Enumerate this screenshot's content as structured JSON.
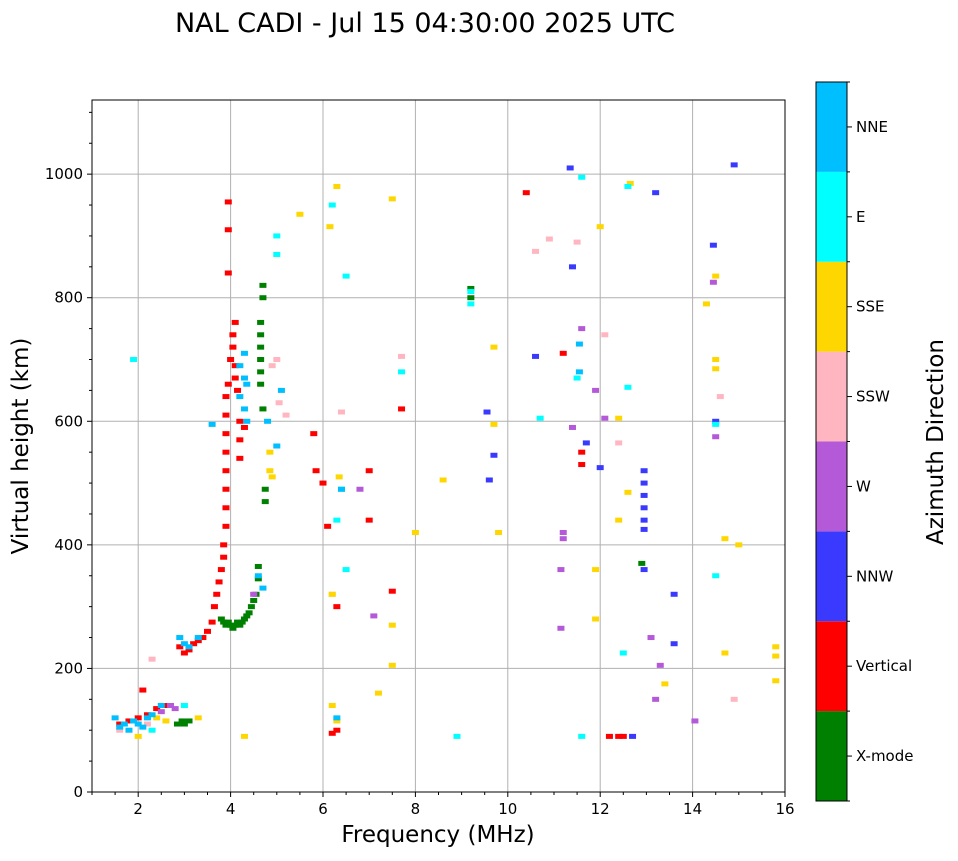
{
  "chart_data": {
    "type": "scatter",
    "title": "NAL CADI - Jul 15 04:30:00 2025 UTC",
    "xlabel": "Frequency (MHz)",
    "ylabel": "Virtual height (km)",
    "xlim": [
      1,
      16
    ],
    "ylim": [
      0,
      1120
    ],
    "xticks": [
      2,
      4,
      6,
      8,
      10,
      12,
      14,
      16
    ],
    "yticks": [
      0,
      200,
      400,
      600,
      800,
      1000
    ],
    "grid": true,
    "colorbar": {
      "label": "Azimuth Direction",
      "categories": [
        {
          "name": "X-mode",
          "color": "#008000"
        },
        {
          "name": "Vertical",
          "color": "#ff0000"
        },
        {
          "name": "NNW",
          "color": "#3a3aff"
        },
        {
          "name": "W",
          "color": "#b45ad8"
        },
        {
          "name": "SSW",
          "color": "#ffb6c1"
        },
        {
          "name": "SSE",
          "color": "#ffd700"
        },
        {
          "name": "E",
          "color": "#00ffff"
        },
        {
          "name": "NNE",
          "color": "#00bfff"
        }
      ]
    },
    "series": [
      {
        "name": "X-mode",
        "points": [
          [
            2.85,
            110
          ],
          [
            2.95,
            115
          ],
          [
            3.0,
            110
          ],
          [
            3.1,
            115
          ],
          [
            3.8,
            280
          ],
          [
            3.85,
            275
          ],
          [
            3.9,
            270
          ],
          [
            3.95,
            275
          ],
          [
            4.0,
            270
          ],
          [
            4.05,
            265
          ],
          [
            4.1,
            270
          ],
          [
            4.15,
            275
          ],
          [
            4.2,
            270
          ],
          [
            4.25,
            275
          ],
          [
            4.3,
            280
          ],
          [
            4.35,
            285
          ],
          [
            4.4,
            290
          ],
          [
            4.45,
            300
          ],
          [
            4.5,
            310
          ],
          [
            4.55,
            320
          ],
          [
            4.6,
            345
          ],
          [
            4.6,
            365
          ],
          [
            4.7,
            620
          ],
          [
            4.65,
            660
          ],
          [
            4.65,
            680
          ],
          [
            4.65,
            700
          ],
          [
            4.65,
            720
          ],
          [
            4.65,
            740
          ],
          [
            4.65,
            760
          ],
          [
            4.7,
            800
          ],
          [
            4.7,
            820
          ],
          [
            4.75,
            490
          ],
          [
            4.75,
            470
          ],
          [
            9.2,
            815
          ],
          [
            9.2,
            800
          ],
          [
            12.9,
            370
          ]
        ]
      },
      {
        "name": "Vertical",
        "points": [
          [
            1.6,
            110
          ],
          [
            1.8,
            115
          ],
          [
            2.0,
            120
          ],
          [
            2.1,
            165
          ],
          [
            2.2,
            125
          ],
          [
            2.4,
            135
          ],
          [
            2.6,
            140
          ],
          [
            2.9,
            235
          ],
          [
            3.0,
            225
          ],
          [
            3.1,
            230
          ],
          [
            3.2,
            240
          ],
          [
            3.3,
            245
          ],
          [
            3.4,
            250
          ],
          [
            3.5,
            260
          ],
          [
            3.6,
            275
          ],
          [
            3.65,
            300
          ],
          [
            3.7,
            320
          ],
          [
            3.75,
            340
          ],
          [
            3.8,
            360
          ],
          [
            3.85,
            380
          ],
          [
            3.85,
            400
          ],
          [
            3.9,
            430
          ],
          [
            3.9,
            460
          ],
          [
            3.9,
            490
          ],
          [
            3.9,
            520
          ],
          [
            3.9,
            550
          ],
          [
            3.9,
            580
          ],
          [
            3.9,
            610
          ],
          [
            3.9,
            640
          ],
          [
            3.95,
            660
          ],
          [
            4.0,
            700
          ],
          [
            4.05,
            740
          ],
          [
            4.1,
            760
          ],
          [
            4.05,
            720
          ],
          [
            4.1,
            690
          ],
          [
            4.1,
            670
          ],
          [
            4.15,
            650
          ],
          [
            4.2,
            600
          ],
          [
            4.2,
            570
          ],
          [
            4.2,
            540
          ],
          [
            4.3,
            590
          ],
          [
            3.95,
            910
          ],
          [
            3.95,
            955
          ],
          [
            3.95,
            840
          ],
          [
            5.8,
            580
          ],
          [
            5.85,
            520
          ],
          [
            6.0,
            500
          ],
          [
            6.1,
            430
          ],
          [
            6.3,
            300
          ],
          [
            6.3,
            100
          ],
          [
            6.2,
            95
          ],
          [
            7.0,
            520
          ],
          [
            7.0,
            440
          ],
          [
            7.5,
            325
          ],
          [
            7.7,
            620
          ],
          [
            10.4,
            970
          ],
          [
            11.2,
            710
          ],
          [
            11.6,
            550
          ],
          [
            11.6,
            530
          ],
          [
            12.2,
            90
          ],
          [
            12.4,
            90
          ],
          [
            12.5,
            90
          ]
        ]
      },
      {
        "name": "NNW",
        "points": [
          [
            9.55,
            615
          ],
          [
            9.6,
            505
          ],
          [
            9.7,
            545
          ],
          [
            10.6,
            705
          ],
          [
            11.35,
            1010
          ],
          [
            11.4,
            850
          ],
          [
            11.7,
            565
          ],
          [
            12.0,
            525
          ],
          [
            12.7,
            90
          ],
          [
            12.95,
            520
          ],
          [
            12.95,
            500
          ],
          [
            12.95,
            480
          ],
          [
            12.95,
            460
          ],
          [
            12.95,
            440
          ],
          [
            12.95,
            425
          ],
          [
            12.95,
            360
          ],
          [
            13.2,
            970
          ],
          [
            13.6,
            320
          ],
          [
            13.6,
            240
          ],
          [
            14.45,
            885
          ],
          [
            14.5,
            600
          ],
          [
            14.9,
            1015
          ]
        ]
      },
      {
        "name": "W",
        "points": [
          [
            2.5,
            130
          ],
          [
            2.7,
            140
          ],
          [
            2.8,
            135
          ],
          [
            4.5,
            320
          ],
          [
            6.8,
            490
          ],
          [
            7.1,
            285
          ],
          [
            11.2,
            420
          ],
          [
            11.2,
            410
          ],
          [
            11.15,
            360
          ],
          [
            11.15,
            265
          ],
          [
            11.4,
            590
          ],
          [
            11.6,
            750
          ],
          [
            11.9,
            650
          ],
          [
            12.1,
            605
          ],
          [
            13.1,
            250
          ],
          [
            13.3,
            205
          ],
          [
            13.2,
            150
          ],
          [
            14.05,
            115
          ],
          [
            14.45,
            825
          ],
          [
            14.5,
            575
          ]
        ]
      },
      {
        "name": "SSW",
        "points": [
          [
            1.6,
            100
          ],
          [
            2.2,
            110
          ],
          [
            2.3,
            215
          ],
          [
            4.9,
            690
          ],
          [
            5.0,
            700
          ],
          [
            5.05,
            630
          ],
          [
            5.2,
            610
          ],
          [
            6.2,
            320
          ],
          [
            6.4,
            615
          ],
          [
            7.7,
            705
          ],
          [
            10.6,
            875
          ],
          [
            10.9,
            895
          ],
          [
            11.5,
            890
          ],
          [
            12.1,
            740
          ],
          [
            12.4,
            565
          ],
          [
            14.6,
            640
          ],
          [
            14.9,
            150
          ]
        ]
      },
      {
        "name": "SSE",
        "points": [
          [
            2.0,
            90
          ],
          [
            2.4,
            120
          ],
          [
            2.6,
            115
          ],
          [
            3.3,
            120
          ],
          [
            4.3,
            90
          ],
          [
            4.85,
            550
          ],
          [
            4.85,
            520
          ],
          [
            4.9,
            510
          ],
          [
            5.5,
            935
          ],
          [
            6.3,
            980
          ],
          [
            6.15,
            915
          ],
          [
            6.35,
            510
          ],
          [
            6.2,
            320
          ],
          [
            6.3,
            115
          ],
          [
            6.2,
            140
          ],
          [
            7.5,
            270
          ],
          [
            7.5,
            205
          ],
          [
            7.2,
            160
          ],
          [
            7.5,
            960
          ],
          [
            8.0,
            420
          ],
          [
            8.6,
            505
          ],
          [
            9.8,
            420
          ],
          [
            9.7,
            720
          ],
          [
            9.7,
            595
          ],
          [
            12.4,
            605
          ],
          [
            12.4,
            440
          ],
          [
            12.6,
            485
          ],
          [
            12.65,
            985
          ],
          [
            12.0,
            915
          ],
          [
            13.4,
            175
          ],
          [
            14.3,
            790
          ],
          [
            14.5,
            835
          ],
          [
            14.5,
            700
          ],
          [
            14.5,
            685
          ],
          [
            14.7,
            410
          ],
          [
            15.0,
            400
          ],
          [
            14.7,
            225
          ],
          [
            15.8,
            235
          ],
          [
            15.8,
            220
          ],
          [
            15.8,
            180
          ],
          [
            11.9,
            360
          ],
          [
            11.9,
            280
          ]
        ]
      },
      {
        "name": "E",
        "points": [
          [
            1.9,
            700
          ],
          [
            2.3,
            100
          ],
          [
            3.0,
            140
          ],
          [
            5.0,
            900
          ],
          [
            5.0,
            870
          ],
          [
            6.2,
            950
          ],
          [
            6.3,
            440
          ],
          [
            6.4,
            490
          ],
          [
            6.5,
            835
          ],
          [
            6.5,
            360
          ],
          [
            7.7,
            680
          ],
          [
            8.9,
            90
          ],
          [
            9.2,
            810
          ],
          [
            9.2,
            790
          ],
          [
            10.7,
            605
          ],
          [
            11.5,
            670
          ],
          [
            11.6,
            995
          ],
          [
            11.6,
            90
          ],
          [
            12.6,
            980
          ],
          [
            12.6,
            655
          ],
          [
            12.5,
            225
          ],
          [
            14.5,
            595
          ],
          [
            14.5,
            350
          ]
        ]
      },
      {
        "name": "NNE",
        "points": [
          [
            1.5,
            120
          ],
          [
            1.6,
            105
          ],
          [
            1.7,
            110
          ],
          [
            1.8,
            100
          ],
          [
            1.9,
            115
          ],
          [
            2.0,
            110
          ],
          [
            2.1,
            105
          ],
          [
            2.2,
            120
          ],
          [
            2.3,
            125
          ],
          [
            2.5,
            140
          ],
          [
            2.9,
            250
          ],
          [
            3.0,
            240
          ],
          [
            3.1,
            235
          ],
          [
            3.3,
            250
          ],
          [
            3.6,
            595
          ],
          [
            4.2,
            690
          ],
          [
            4.3,
            710
          ],
          [
            4.3,
            670
          ],
          [
            4.2,
            640
          ],
          [
            4.3,
            620
          ],
          [
            4.35,
            660
          ],
          [
            4.35,
            600
          ],
          [
            4.6,
            350
          ],
          [
            4.7,
            330
          ],
          [
            4.8,
            600
          ],
          [
            5.0,
            560
          ],
          [
            5.1,
            650
          ],
          [
            6.3,
            120
          ],
          [
            6.4,
            490
          ],
          [
            11.55,
            725
          ],
          [
            11.55,
            680
          ]
        ]
      }
    ]
  }
}
